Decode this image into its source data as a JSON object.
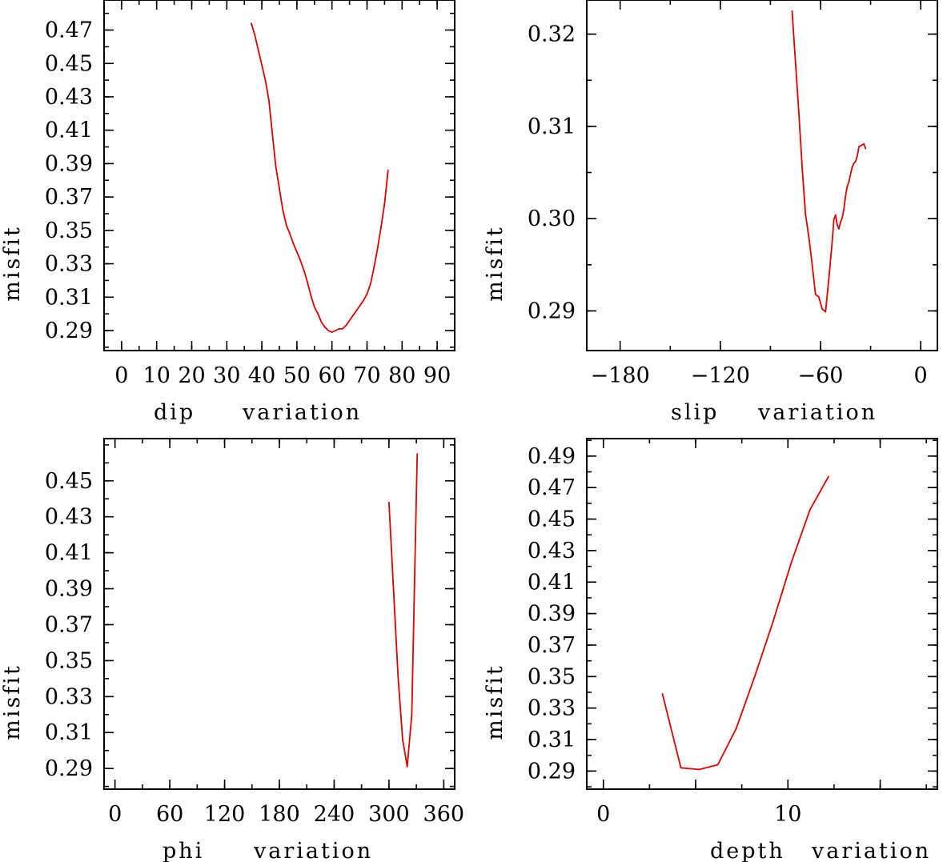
{
  "chart_data": [
    {
      "type": "line",
      "xlabel": "dip",
      "xlabel2": "variation",
      "ylabel": "misfit",
      "xlim": [
        -5,
        95
      ],
      "ylim": [
        0.278,
        0.488
      ],
      "xticks": [
        0,
        10,
        20,
        30,
        40,
        50,
        60,
        70,
        80,
        90
      ],
      "yticks": [
        0.29,
        0.31,
        0.33,
        0.35,
        0.37,
        0.39,
        0.41,
        0.43,
        0.45,
        0.47
      ],
      "xtick_labels": [
        "0",
        "10",
        "20",
        "30",
        "40",
        "50",
        "60",
        "70",
        "80",
        "90"
      ],
      "ytick_labels": [
        "0.29",
        "0.31",
        "0.33",
        "0.35",
        "0.37",
        "0.39",
        "0.41",
        "0.43",
        "0.45",
        "0.47"
      ],
      "color": "#e00000",
      "x": [
        37,
        38,
        39,
        40,
        41,
        42,
        43,
        44,
        45,
        46,
        47,
        48,
        49,
        50,
        51,
        52,
        53,
        54,
        55,
        56,
        57,
        58,
        59,
        60,
        61,
        62,
        63,
        64,
        65,
        66,
        67,
        68,
        69,
        70,
        71,
        72,
        73,
        74,
        75,
        76
      ],
      "y": [
        0.474,
        0.467,
        0.458,
        0.449,
        0.44,
        0.428,
        0.408,
        0.388,
        0.375,
        0.362,
        0.353,
        0.348,
        0.342,
        0.337,
        0.332,
        0.326,
        0.319,
        0.311,
        0.304,
        0.3,
        0.295,
        0.292,
        0.29,
        0.289,
        0.29,
        0.291,
        0.291,
        0.293,
        0.296,
        0.299,
        0.302,
        0.305,
        0.308,
        0.312,
        0.318,
        0.328,
        0.339,
        0.352,
        0.366,
        0.386
      ]
    },
    {
      "type": "line",
      "xlabel": "slip",
      "xlabel2": "variation",
      "ylabel": "misfit",
      "xlim": [
        -200,
        10
      ],
      "ylim": [
        0.2857,
        0.3237
      ],
      "xticks": [
        -180,
        -120,
        -60,
        0
      ],
      "yticks": [
        0.29,
        0.3,
        0.31,
        0.32
      ],
      "xtick_labels": [
        "−180",
        "−120",
        "−60",
        "0"
      ],
      "ytick_labels": [
        "0.29",
        "0.30",
        "0.31",
        "0.32"
      ],
      "color": "#e00000",
      "x": [
        -77,
        -75,
        -73,
        -71,
        -69,
        -67,
        -65,
        -63,
        -61,
        -59,
        -57,
        -55,
        -53,
        -52,
        -51,
        -50,
        -49,
        -48,
        -47,
        -46,
        -45,
        -44,
        -43,
        -42,
        -41,
        -40,
        -39,
        -38,
        -37,
        -36,
        -35,
        -34,
        -33
      ],
      "y": [
        0.3225,
        0.317,
        0.3115,
        0.3055,
        0.3005,
        0.298,
        0.295,
        0.2918,
        0.2915,
        0.2902,
        0.2899,
        0.2935,
        0.2975,
        0.2999,
        0.3004,
        0.2993,
        0.2989,
        0.2996,
        0.3001,
        0.301,
        0.3025,
        0.3035,
        0.304,
        0.3048,
        0.3056,
        0.306,
        0.3062,
        0.3068,
        0.3078,
        0.3079,
        0.308,
        0.3081,
        0.3076
      ]
    },
    {
      "type": "line",
      "xlabel": "phi",
      "xlabel2": "variation",
      "ylabel": "misfit",
      "xlim": [
        -12,
        372
      ],
      "ylim": [
        0.2785,
        0.4735
      ],
      "xticks": [
        0,
        60,
        120,
        180,
        240,
        300,
        360
      ],
      "yticks": [
        0.29,
        0.31,
        0.33,
        0.35,
        0.37,
        0.39,
        0.41,
        0.43,
        0.45
      ],
      "xtick_labels": [
        "0",
        "60",
        "120",
        "180",
        "240",
        "300",
        "360"
      ],
      "ytick_labels": [
        "0.29",
        "0.31",
        "0.33",
        "0.35",
        "0.37",
        "0.39",
        "0.41",
        "0.43",
        "0.45"
      ],
      "color": "#e00000",
      "x": [
        300,
        310,
        315,
        320,
        325,
        331
      ],
      "y": [
        0.438,
        0.341,
        0.306,
        0.291,
        0.32,
        0.465
      ]
    },
    {
      "type": "line",
      "xlabel": "depth",
      "xlabel2": "variation",
      "ylabel": "misfit",
      "xlim": [
        -0.9,
        18.1
      ],
      "ylim": [
        0.2785,
        0.5011
      ],
      "xticks": [
        0,
        5,
        10,
        15
      ],
      "yticks": [
        0.29,
        0.31,
        0.33,
        0.35,
        0.37,
        0.39,
        0.41,
        0.43,
        0.45,
        0.47,
        0.49
      ],
      "xtick_labels": [
        "0",
        "",
        "10",
        ""
      ],
      "ytick_labels": [
        "0.29",
        "0.31",
        "0.33",
        "0.35",
        "0.37",
        "0.39",
        "0.41",
        "0.43",
        "0.45",
        "0.47",
        "0.49"
      ],
      "color": "#e00000",
      "x": [
        3.2,
        4.2,
        5.2,
        6.2,
        7.2,
        8.2,
        9.2,
        10.2,
        11.2,
        12.2
      ],
      "y": [
        0.339,
        0.292,
        0.291,
        0.294,
        0.317,
        0.35,
        0.385,
        0.423,
        0.456,
        0.477
      ]
    }
  ]
}
